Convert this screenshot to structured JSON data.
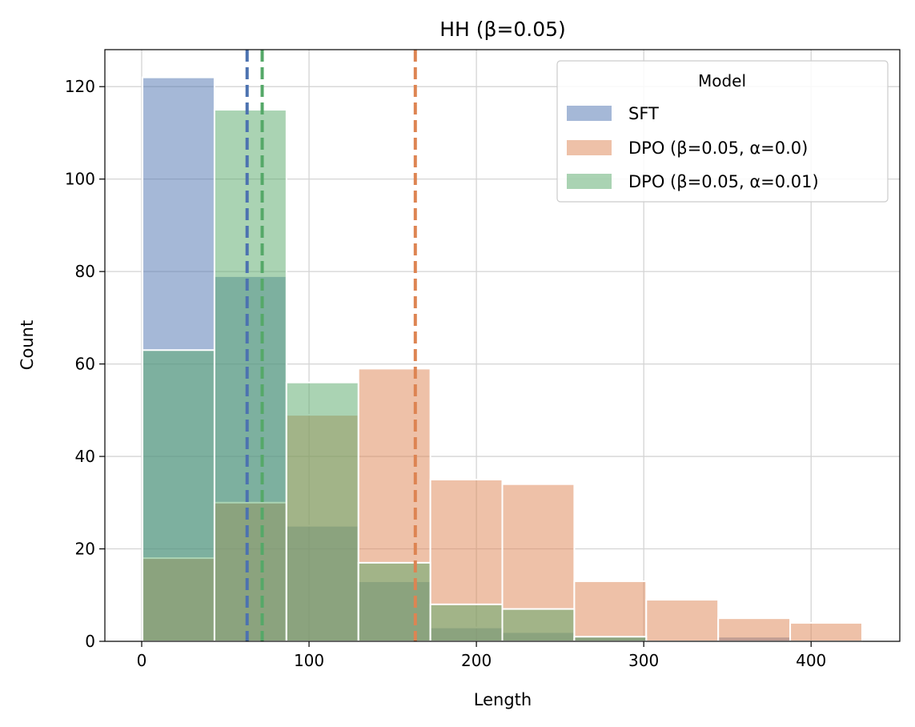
{
  "chart_data": {
    "type": "histogram",
    "title": "HH (β=0.05)",
    "xlabel": "Length",
    "ylabel": "Count",
    "xlim": [
      -22,
      453
    ],
    "ylim": [
      0,
      128
    ],
    "xticks": [
      0,
      100,
      200,
      300,
      400
    ],
    "yticks": [
      0,
      20,
      40,
      60,
      80,
      100,
      120
    ],
    "grid": true,
    "legend": {
      "title": "Model",
      "position": "top-right"
    },
    "bin_edges": [
      0.5,
      43.5,
      86.5,
      129.5,
      172.5,
      215.5,
      258.5,
      301.5,
      344.5,
      387.5,
      430.5
    ],
    "series": [
      {
        "name": "SFT",
        "color": "#4c72b0",
        "values": [
          122,
          79,
          25,
          13,
          3,
          2,
          1,
          0,
          1,
          0
        ],
        "mean": 63
      },
      {
        "name": "DPO (β=0.05, α=0.0)",
        "color": "#dd8452",
        "values": [
          18,
          30,
          49,
          59,
          35,
          34,
          13,
          9,
          5,
          4
        ],
        "mean": 163.5
      },
      {
        "name": "DPO (β=0.05, α=0.01)",
        "color": "#55a868",
        "values": [
          63,
          115,
          56,
          17,
          8,
          7,
          1,
          0,
          0,
          0
        ],
        "mean": 72
      }
    ]
  }
}
